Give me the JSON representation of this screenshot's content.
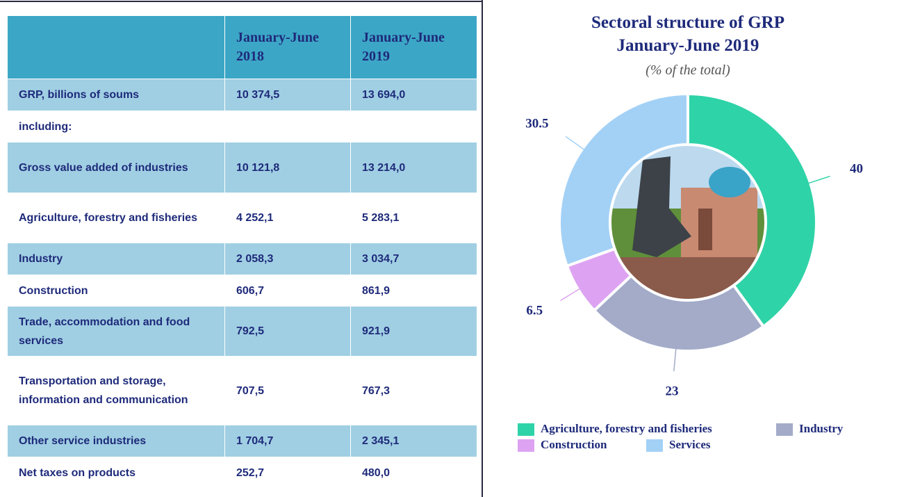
{
  "table": {
    "columns": [
      "January-June 2018",
      "January-June 2019"
    ],
    "rows": [
      {
        "label": "GRP, billions of soums",
        "values": [
          "10 374,5",
          "13 694,0"
        ]
      },
      {
        "label": "including:",
        "values": []
      },
      {
        "label": "Gross value added of industries",
        "values": [
          "10 121,8",
          "13 214,0"
        ]
      },
      {
        "label": "Agriculture, forestry and fisheries",
        "values": [
          "4 252,1",
          "5 283,1"
        ]
      },
      {
        "label": "Industry",
        "values": [
          "2 058,3",
          "3 034,7"
        ]
      },
      {
        "label": "Construction",
        "values": [
          "606,7",
          "861,9"
        ]
      },
      {
        "label": "Trade, accommodation and food services",
        "values": [
          "792,5",
          "921,9"
        ]
      },
      {
        "label": "Transportation and storage, information and communication",
        "values": [
          "707,5",
          "767,3"
        ]
      },
      {
        "label": "Other service industries",
        "values": [
          "1 704,7",
          "2 345,1"
        ]
      },
      {
        "label": "Net taxes on products",
        "values": [
          "252,7",
          "480,0"
        ]
      }
    ]
  },
  "chart_data": {
    "type": "pie",
    "title": "Sectoral structure of GRP January-June 2019",
    "subtitle": "(% of the total)",
    "categories": [
      "Agriculture, forestry and fisheries",
      "Industry",
      "Construction",
      "Services"
    ],
    "values": [
      40,
      23,
      6.5,
      30.5
    ],
    "colors": [
      "#2fd3a8",
      "#a3abc9",
      "#dda3f2",
      "#a3d1f6"
    ]
  }
}
